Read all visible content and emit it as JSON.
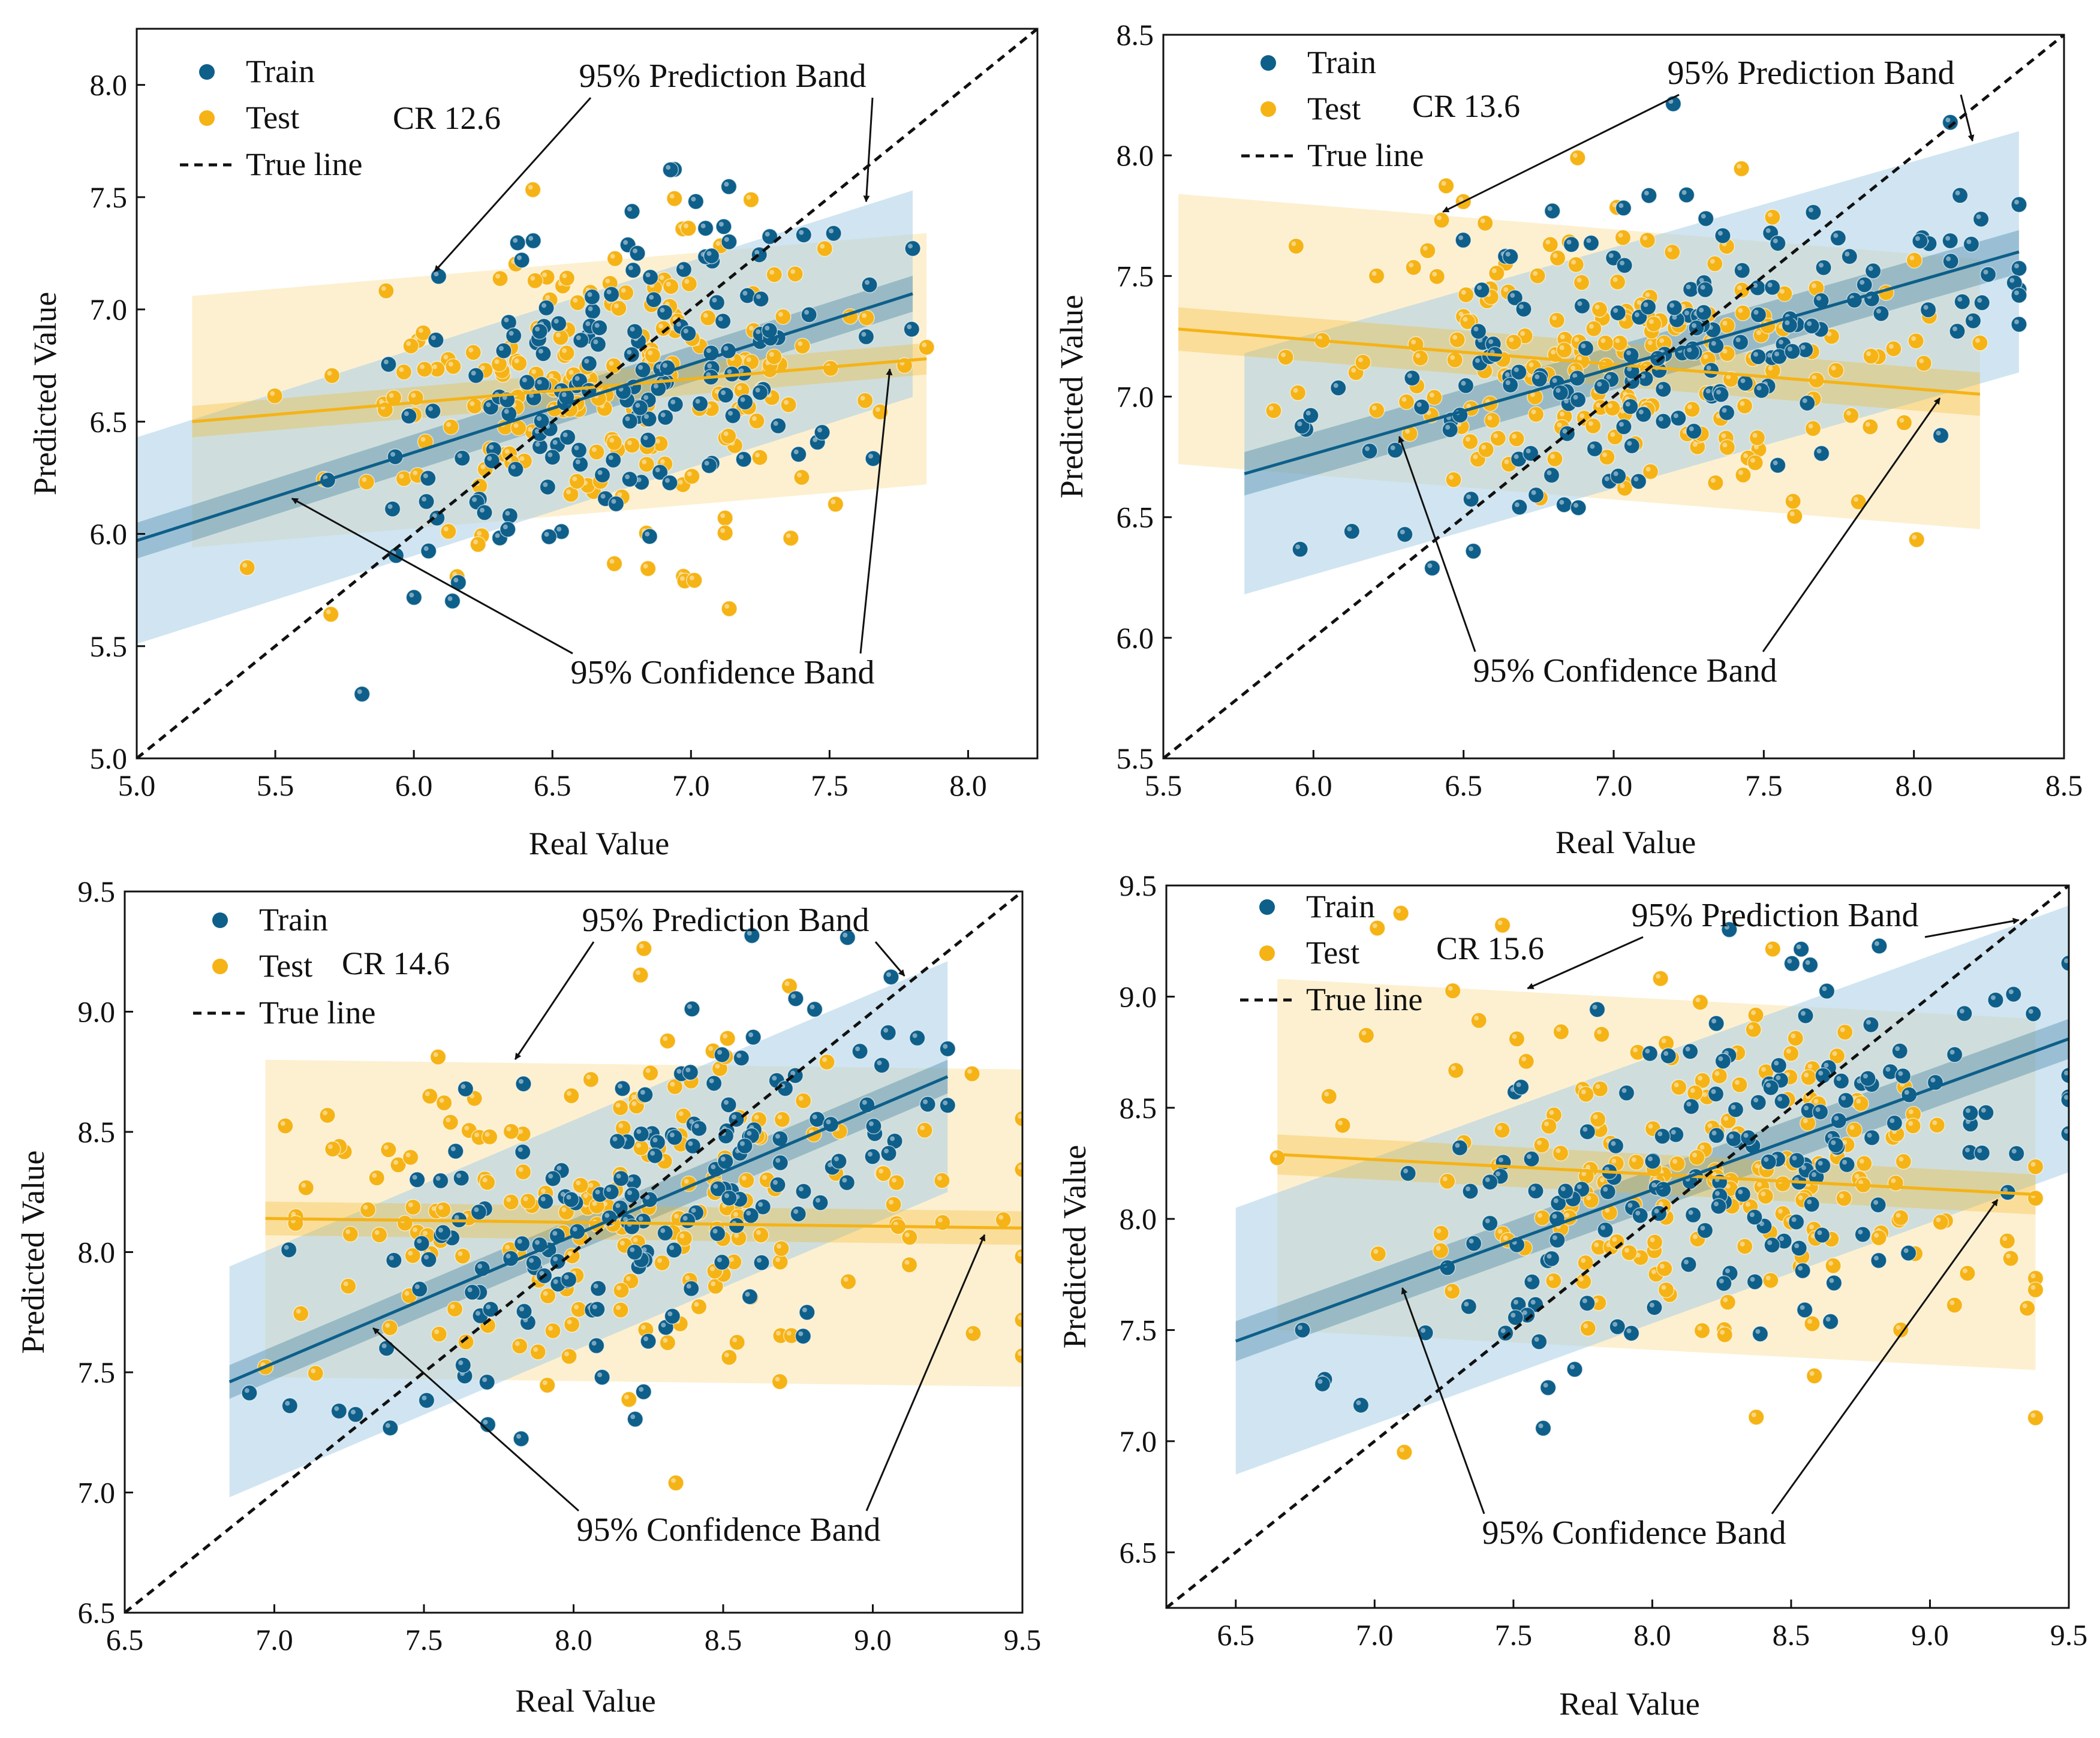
{
  "colors": {
    "train": "#0e5f8a",
    "test": "#f5b316",
    "train_band": "#a9cfe6",
    "test_band": "#fbe3a9",
    "true_line": "#111111"
  },
  "legend_labels": {
    "train": "Train",
    "test": "Test",
    "true_line": "True line"
  },
  "annotations": {
    "prediction_band": "95% Prediction Band",
    "confidence_band": "95% Confidence Band"
  },
  "chart_data": [
    {
      "type": "scatter",
      "condition": "CR 12.6",
      "xlabel": "Real Value",
      "ylabel": "Predicted Value",
      "xlim": [
        5.0,
        8.25
      ],
      "ylim": [
        5.0,
        8.25
      ],
      "xticks": [
        5.0,
        5.5,
        6.0,
        6.5,
        7.0,
        7.5,
        8.0
      ],
      "yticks": [
        5.0,
        5.5,
        6.0,
        6.5,
        7.0,
        7.5,
        8.0
      ],
      "tick_labels_x": [
        "5.0",
        "5.5",
        "6.0",
        "6.5",
        "7.0",
        "7.5",
        "8.0"
      ],
      "tick_labels_y": [
        "5.0",
        "5.5",
        "6.0",
        "6.5",
        "7.0",
        "7.5",
        "8.0"
      ],
      "train": {
        "xrange": [
          5.0,
          7.8
        ],
        "fit": [
          5.97,
          7.07
        ],
        "conf_half": 0.08,
        "pred_half": 0.46,
        "center": [
          6.75,
          6.7
        ],
        "sx": 0.48,
        "sy": 0.35
      },
      "test": {
        "xrange": [
          5.2,
          7.85
        ],
        "fit": [
          6.5,
          6.78
        ],
        "conf_half": 0.07,
        "pred_half": 0.56,
        "center": [
          6.7,
          6.65
        ],
        "sx": 0.5,
        "sy": 0.33
      },
      "n_train": 165,
      "n_test": 185
    },
    {
      "type": "scatter",
      "condition": "CR 13.6",
      "xlabel": "Real Value",
      "ylabel": "Predicted Value",
      "xlim": [
        5.5,
        8.5
      ],
      "ylim": [
        5.5,
        8.5
      ],
      "xticks": [
        5.5,
        6.0,
        6.5,
        7.0,
        7.5,
        8.0,
        8.5
      ],
      "yticks": [
        5.5,
        6.0,
        6.5,
        7.0,
        7.5,
        8.0,
        8.5
      ],
      "tick_labels_x": [
        "5.5",
        "6.0",
        "6.5",
        "7.0",
        "7.5",
        "8.0",
        "8.5"
      ],
      "tick_labels_y": [
        "5.5",
        "6.0",
        "6.5",
        "7.0",
        "7.5",
        "8.0",
        "8.5"
      ],
      "train": {
        "xrange": [
          5.77,
          8.35
        ],
        "fit": [
          6.68,
          7.6
        ],
        "conf_half": 0.09,
        "pred_half": 0.5,
        "center": [
          7.2,
          7.15
        ],
        "sx": 0.55,
        "sy": 0.32
      },
      "test": {
        "xrange": [
          5.55,
          8.22
        ],
        "fit": [
          7.28,
          7.01
        ],
        "conf_half": 0.09,
        "pred_half": 0.56,
        "center": [
          7.1,
          7.1
        ],
        "sx": 0.5,
        "sy": 0.32
      },
      "n_train": 165,
      "n_test": 185
    },
    {
      "type": "scatter",
      "condition": "CR 14.6",
      "xlabel": "Real Value",
      "ylabel": "Predicted Value",
      "xlim": [
        6.5,
        9.5
      ],
      "ylim": [
        6.5,
        9.5
      ],
      "xticks": [
        6.5,
        7.0,
        7.5,
        8.0,
        8.5,
        9.0,
        9.5
      ],
      "yticks": [
        6.5,
        7.0,
        7.5,
        8.0,
        8.5,
        9.0,
        9.5
      ],
      "tick_labels_x": [
        "6.5",
        "7.0",
        "7.5",
        "8.0",
        "8.5",
        "9.0",
        "9.5"
      ],
      "tick_labels_y": [
        "6.5",
        "7.0",
        "7.5",
        "8.0",
        "8.5",
        "9.0",
        "9.5"
      ],
      "train": {
        "xrange": [
          6.85,
          9.25
        ],
        "fit": [
          7.46,
          8.73
        ],
        "conf_half": 0.07,
        "pred_half": 0.48,
        "center": [
          8.2,
          8.1
        ],
        "sx": 0.55,
        "sy": 0.38
      },
      "test": {
        "xrange": [
          6.97,
          9.5
        ],
        "fit": [
          8.14,
          8.1
        ],
        "conf_half": 0.07,
        "pred_half": 0.66,
        "center": [
          8.1,
          8.1
        ],
        "sx": 0.55,
        "sy": 0.38
      },
      "n_train": 165,
      "n_test": 185
    },
    {
      "type": "scatter",
      "condition": "CR 15.6",
      "xlabel": "Real Value",
      "ylabel": "Predicted Value",
      "xlim": [
        6.25,
        9.5
      ],
      "ylim": [
        6.25,
        9.5
      ],
      "xticks": [
        6.5,
        7.0,
        7.5,
        8.0,
        8.5,
        9.0,
        9.5
      ],
      "yticks": [
        6.5,
        7.0,
        7.5,
        8.0,
        8.5,
        9.0,
        9.5
      ],
      "tick_labels_x": [
        "6.5",
        "7.0",
        "7.5",
        "8.0",
        "8.5",
        "9.0",
        "9.5"
      ],
      "tick_labels_y": [
        "6.5",
        "7.0",
        "7.5",
        "8.0",
        "8.5",
        "9.0",
        "9.5"
      ],
      "train": {
        "xrange": [
          6.5,
          9.5
        ],
        "fit": [
          7.45,
          8.81
        ],
        "conf_half": 0.09,
        "pred_half": 0.6,
        "center": [
          8.3,
          8.2
        ],
        "sx": 0.6,
        "sy": 0.4
      },
      "test": {
        "xrange": [
          6.65,
          9.38
        ],
        "fit": [
          8.29,
          8.11
        ],
        "conf_half": 0.09,
        "pred_half": 0.79,
        "center": [
          8.2,
          8.15
        ],
        "sx": 0.6,
        "sy": 0.42
      },
      "n_train": 165,
      "n_test": 185
    }
  ]
}
